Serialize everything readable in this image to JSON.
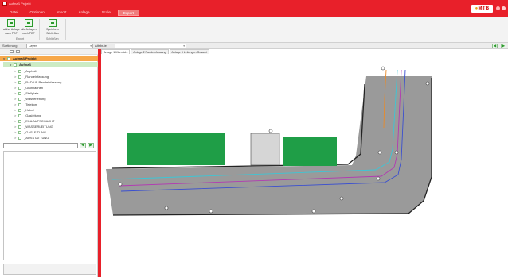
{
  "titlebar": {
    "title": "Aufmaß Projekt"
  },
  "menu": [
    {
      "label": "Datei"
    },
    {
      "label": "Optionen"
    },
    {
      "label": "Import"
    },
    {
      "label": "Anlage"
    },
    {
      "label": "Scale"
    },
    {
      "label": "Export",
      "active": true
    }
  ],
  "brand": {
    "logo_main": "MTB",
    "logo_accent": "●"
  },
  "ribbon": {
    "buttons": [
      {
        "label_1": "aktive Anlage",
        "label_2": "nach PDF"
      },
      {
        "label_1": "alle Anlagen",
        "label_2": "nach PDF"
      },
      {
        "label_1": "Speichern",
        "label_2": "Schließen"
      }
    ],
    "groups": {
      "export": "Export",
      "close": "Schließen"
    }
  },
  "sortrow": {
    "sort_label": "Sortierung",
    "sort_value": "Layer",
    "attr_label": "Attribute",
    "attr_value": ""
  },
  "tree": {
    "root": "Aufmaß Projekt",
    "group": "Aufmaß",
    "items": [
      "_Asphalt",
      "_Randeinfassung",
      "_RADIUS Randeinfassung",
      "_Grünflächen",
      "_Stellplatz",
      "_Wasserleitung",
      "_Telekom",
      "_Kabel",
      "_Gasleitung",
      "_EINLAUFSCHACHT",
      "_WASSERLEITUNG",
      "_GASLEITUNG",
      "_AUSSTATTUNG"
    ]
  },
  "tabs": [
    {
      "label": "Anlage 1 Übersicht",
      "active": true
    },
    {
      "label": "Anlage 2 Randeinfassung"
    },
    {
      "label": "Anlage 3 Leitungen Gesamt"
    }
  ],
  "colors": {
    "accent": "#e8202a",
    "road": "#9a9a9a",
    "grass": "#1f9e47",
    "line_orange": "#e88a2a",
    "line_blue": "#3a4fd0",
    "line_cyan": "#3cc6d6",
    "line_magenta": "#b23ab2"
  }
}
